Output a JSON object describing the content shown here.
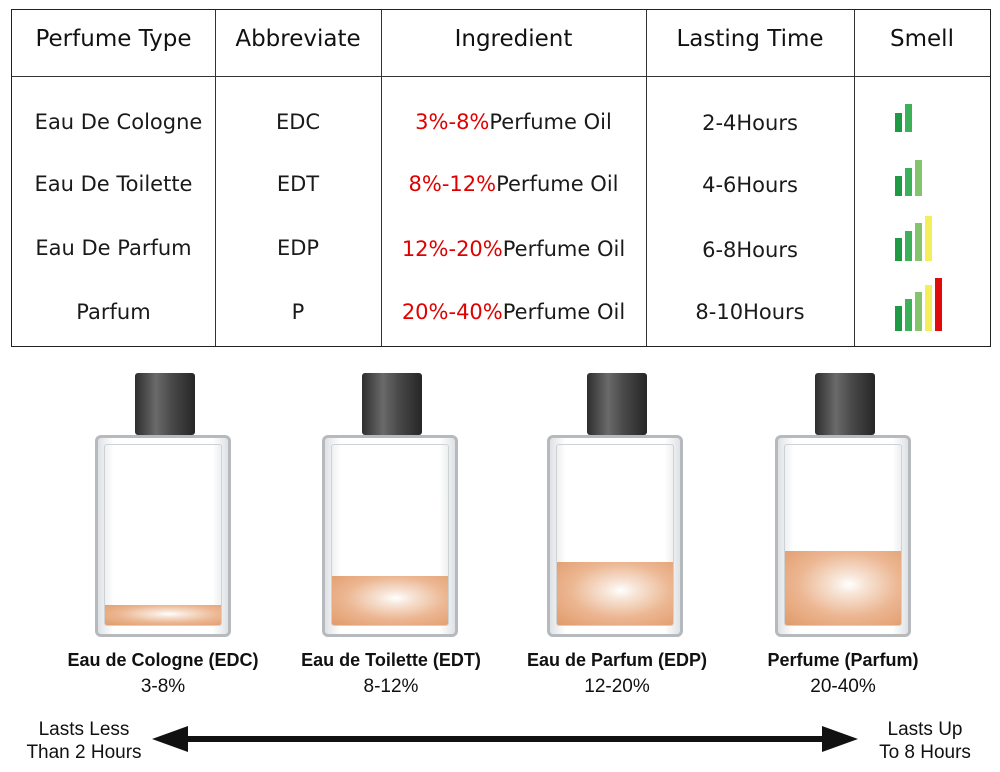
{
  "table": {
    "headers": [
      "Perfume Type",
      "Abbreviate",
      "Ingredient",
      "Lasting Time",
      "Smell"
    ],
    "rows": [
      {
        "type": "Eau De Cologne",
        "abbr": "EDC",
        "pct": "3%-8%",
        "oil": "Perfume Oil",
        "time": "2-4Hours",
        "smell_level": 2
      },
      {
        "type": "Eau De Toilette",
        "abbr": "EDT",
        "pct": "8%-12%",
        "oil": "Perfume Oil",
        "time": "4-6Hours",
        "smell_level": 3
      },
      {
        "type": "Eau De Parfum",
        "abbr": "EDP",
        "pct": "12%-20%",
        "oil": "Perfume Oil",
        "time": "6-8Hours",
        "smell_level": 4
      },
      {
        "type": "Parfum",
        "abbr": "P",
        "pct": "20%-40%",
        "oil": "Perfume Oil",
        "time": "8-10Hours",
        "smell_level": 5
      }
    ],
    "smell_bar_colors": [
      "#1f9a44",
      "#3cb15a",
      "#84c46c",
      "#f3ee5a",
      "#e10b0b"
    ]
  },
  "bottles": [
    {
      "title": "Eau de Cologne (EDC)",
      "pct": "3-8%",
      "fill_fraction": 0.11
    },
    {
      "title": "Eau de Toilette (EDT)",
      "pct": "8-12%",
      "fill_fraction": 0.27
    },
    {
      "title": "Eau de Parfum (EDP)",
      "pct": "12-20%",
      "fill_fraction": 0.35
    },
    {
      "title": "Perfume (Parfum)",
      "pct": "20-40%",
      "fill_fraction": 0.41
    }
  ],
  "arrow": {
    "left_line1": "Lasts Less",
    "left_line2": "Than 2 Hours",
    "right_line1": "Lasts Up",
    "right_line2": "To 8 Hours"
  }
}
